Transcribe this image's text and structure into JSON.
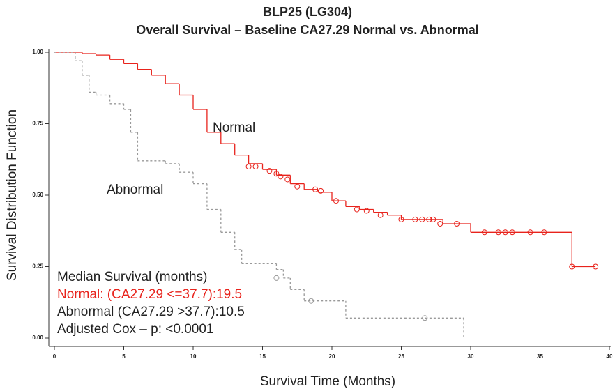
{
  "chart_data": {
    "type": "line",
    "title": "BLP25 (LG304)",
    "subtitle": "Overall Survival – Baseline CA27.29 Normal vs. Abnormal",
    "x_label": "Survival Time (Months)",
    "y_label": "Survival Distribution Function",
    "step": true,
    "xlim": [
      0,
      40
    ],
    "ylim": [
      0,
      1
    ],
    "xticks": [
      0,
      5,
      10,
      15,
      20,
      25,
      30,
      35,
      40
    ],
    "yticks": [
      {
        "value": 0,
        "label": "0.00"
      },
      0.25,
      {
        "value": 0.5,
        "label": "0.50"
      },
      0.75,
      {
        "value": 1,
        "label": "1.00"
      }
    ],
    "series": [
      {
        "name": "Normal",
        "color": "#e8231c",
        "dash": false,
        "x": [
          0,
          2,
          3,
          4,
          5,
          6,
          7,
          8,
          9,
          10,
          11,
          12,
          13,
          14,
          15,
          16,
          17,
          18,
          19,
          20,
          21,
          22,
          23,
          24,
          25,
          28,
          30,
          37.3,
          39
        ],
        "values": [
          1.0,
          0.995,
          0.99,
          0.975,
          0.96,
          0.94,
          0.92,
          0.89,
          0.85,
          0.8,
          0.72,
          0.68,
          0.64,
          0.61,
          0.59,
          0.57,
          0.54,
          0.52,
          0.51,
          0.48,
          0.46,
          0.45,
          0.44,
          0.43,
          0.415,
          0.4,
          0.37,
          0.25,
          0.25
        ],
        "censored_x": [
          14,
          14.5,
          15.5,
          16,
          16.3,
          16.8,
          17.5,
          18.8,
          19.2,
          20.3,
          21.8,
          22.5,
          23.5,
          25,
          26,
          26.5,
          27,
          27.3,
          27.8,
          29,
          31,
          32,
          32.5,
          33,
          34.3,
          35.3,
          37.3,
          39
        ],
        "censored_values": [
          0.6,
          0.6,
          0.585,
          0.575,
          0.565,
          0.555,
          0.53,
          0.52,
          0.515,
          0.48,
          0.45,
          0.445,
          0.43,
          0.415,
          0.415,
          0.415,
          0.415,
          0.415,
          0.4,
          0.4,
          0.37,
          0.37,
          0.37,
          0.37,
          0.37,
          0.37,
          0.25,
          0.25
        ]
      },
      {
        "name": "Abnormal",
        "color": "#999999",
        "dash": true,
        "x": [
          0,
          1.5,
          2,
          2.5,
          3,
          4,
          5,
          5.5,
          6,
          8,
          9,
          10,
          11,
          12,
          13,
          13.5,
          16,
          16.5,
          17,
          18,
          21,
          29.5
        ],
        "values": [
          1.0,
          0.97,
          0.92,
          0.86,
          0.85,
          0.82,
          0.8,
          0.72,
          0.62,
          0.61,
          0.58,
          0.54,
          0.45,
          0.37,
          0.31,
          0.26,
          0.24,
          0.21,
          0.17,
          0.13,
          0.07,
          0
        ],
        "censored_x": [
          16,
          18.5,
          26.7
        ],
        "censored_values": [
          0.21,
          0.13,
          0.07
        ]
      }
    ],
    "annotations": [
      "Median Survival (months)",
      "Normal: (CA27.29 <=37.7):19.5",
      "Abnormal (CA27.29 >37.7):10.5",
      "Adjusted Cox – p: <0.0001"
    ]
  }
}
